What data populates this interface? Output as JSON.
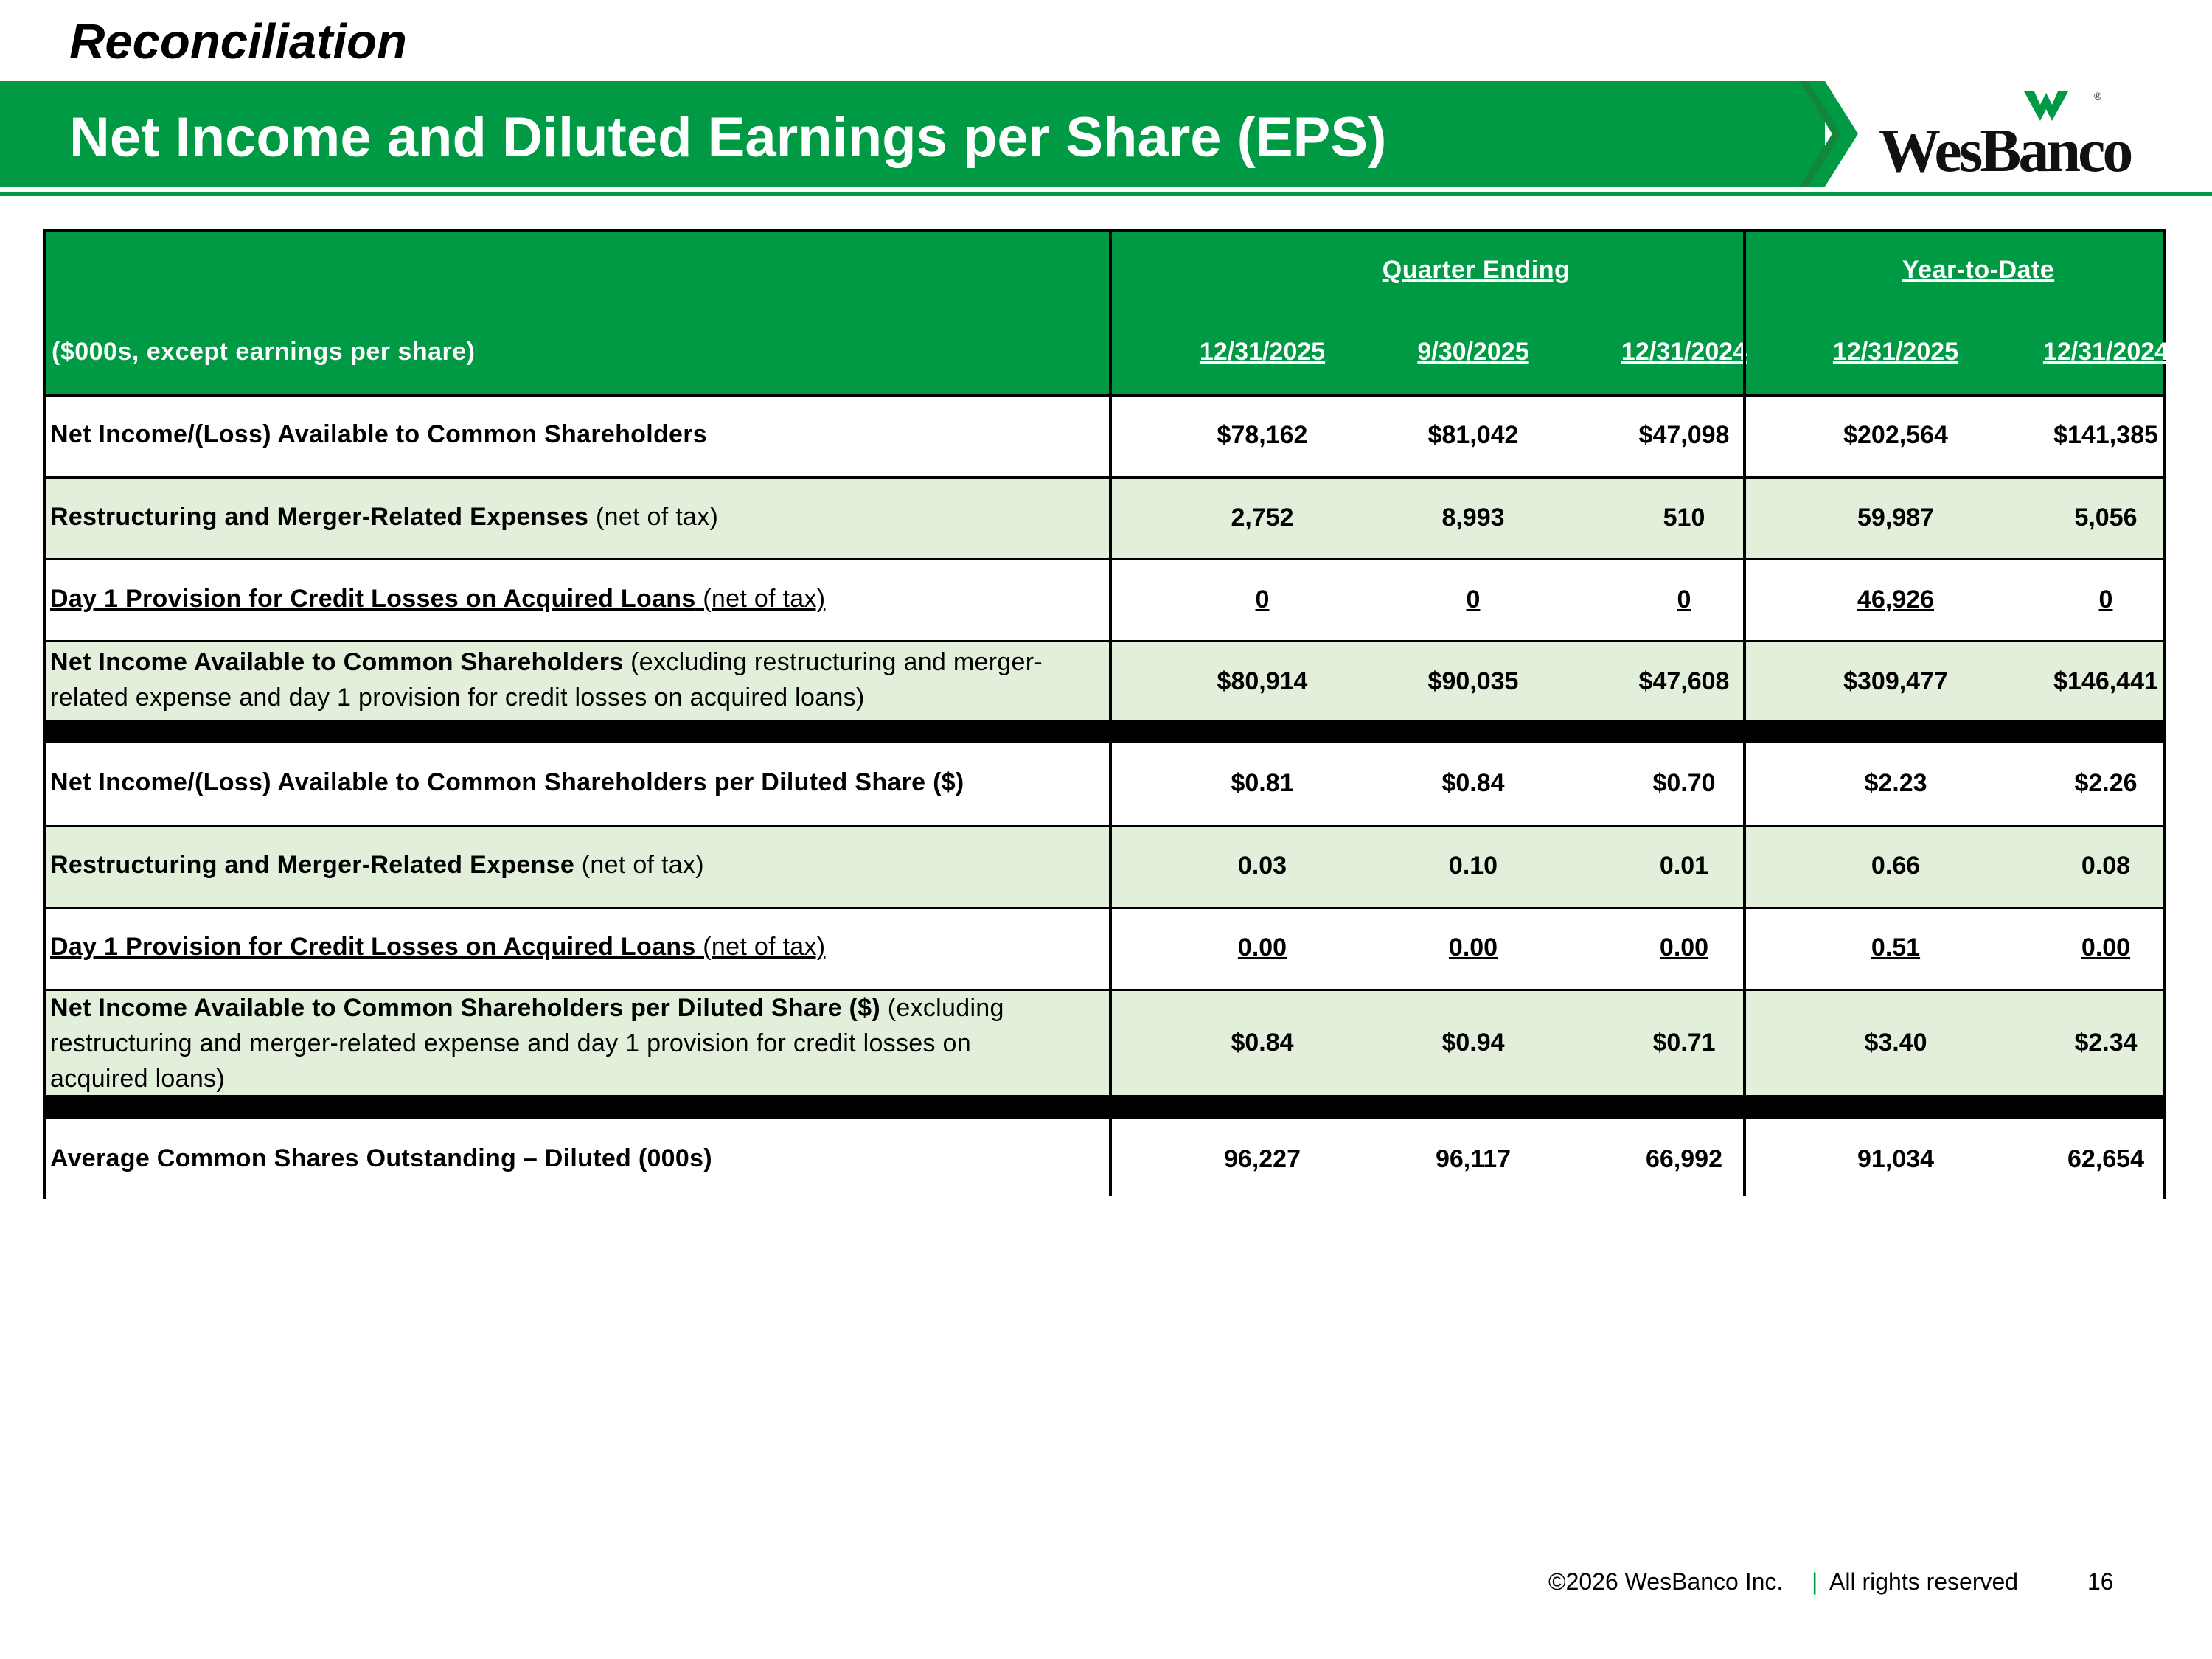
{
  "supertitle": "Reconciliation",
  "title": "Net Income and Diluted Earnings per Share (EPS)",
  "brand": {
    "name": "WesBanco",
    "reg_mark": "®",
    "green": "#009a44",
    "tint": "#e2efda"
  },
  "table": {
    "groups": [
      "Quarter Ending",
      "Year-to-Date"
    ],
    "units_label": "($000s, except earnings per share)",
    "columns": [
      "12/31/2025",
      "9/30/2025",
      "12/31/2024",
      "12/31/2025",
      "12/31/2024"
    ],
    "rows": [
      {
        "bold": "Net Income/(Loss) Available to Common Shareholders",
        "normal": "",
        "values": [
          "$78,162",
          "$81,042",
          "$47,098",
          "$202,564",
          "$141,385"
        ]
      },
      {
        "bold": "Restructuring and Merger-Related Expenses",
        "normal": " (net of tax)",
        "values": [
          "2,752",
          "8,993",
          "510",
          "59,987",
          "5,056"
        ]
      },
      {
        "bold": "Day 1 Provision for Credit Losses on Acquired Loans",
        "normal": " (net of tax)",
        "values": [
          "0",
          "0",
          "0",
          "46,926",
          "0"
        ]
      },
      {
        "bold": "Net Income Available to Common Shareholders",
        "normal_line1": " (excluding restructuring and merger-",
        "normal_line2": "related expense and day 1 provision for credit losses on acquired loans)",
        "values": [
          "$80,914",
          "$90,035",
          "$47,608",
          "$309,477",
          "$146,441"
        ]
      },
      {
        "bold": "Net Income/(Loss) Available to Common Shareholders per Diluted Share ($)",
        "normal": "",
        "values": [
          "$0.81",
          "$0.84",
          "$0.70",
          "$2.23",
          "$2.26"
        ]
      },
      {
        "bold": "Restructuring and Merger-Related Expense",
        "normal": " (net of tax)",
        "values": [
          "0.03",
          "0.10",
          "0.01",
          "0.66",
          "0.08"
        ]
      },
      {
        "bold": "Day 1 Provision for Credit Losses on Acquired Loans",
        "normal": " (net of tax)",
        "values": [
          "0.00",
          "0.00",
          "0.00",
          "0.51",
          "0.00"
        ]
      },
      {
        "bold": "Net Income Available to Common Shareholders per Diluted Share ($)",
        "normal_line1": " (excluding",
        "normal_line2": "restructuring and merger-related expense and day 1 provision for credit losses on",
        "normal_line3": "acquired loans)",
        "values": [
          "$0.84",
          "$0.94",
          "$0.71",
          "$3.40",
          "$2.34"
        ]
      },
      {
        "bold": "Average Common Shares Outstanding – Diluted (000s)",
        "normal": "",
        "values": [
          "96,227",
          "96,117",
          "66,992",
          "91,034",
          "62,654"
        ]
      }
    ]
  },
  "footer": {
    "copyright": "©2026 WesBanco Inc.",
    "separator": "|",
    "rights": "All rights reserved",
    "page": "16"
  }
}
